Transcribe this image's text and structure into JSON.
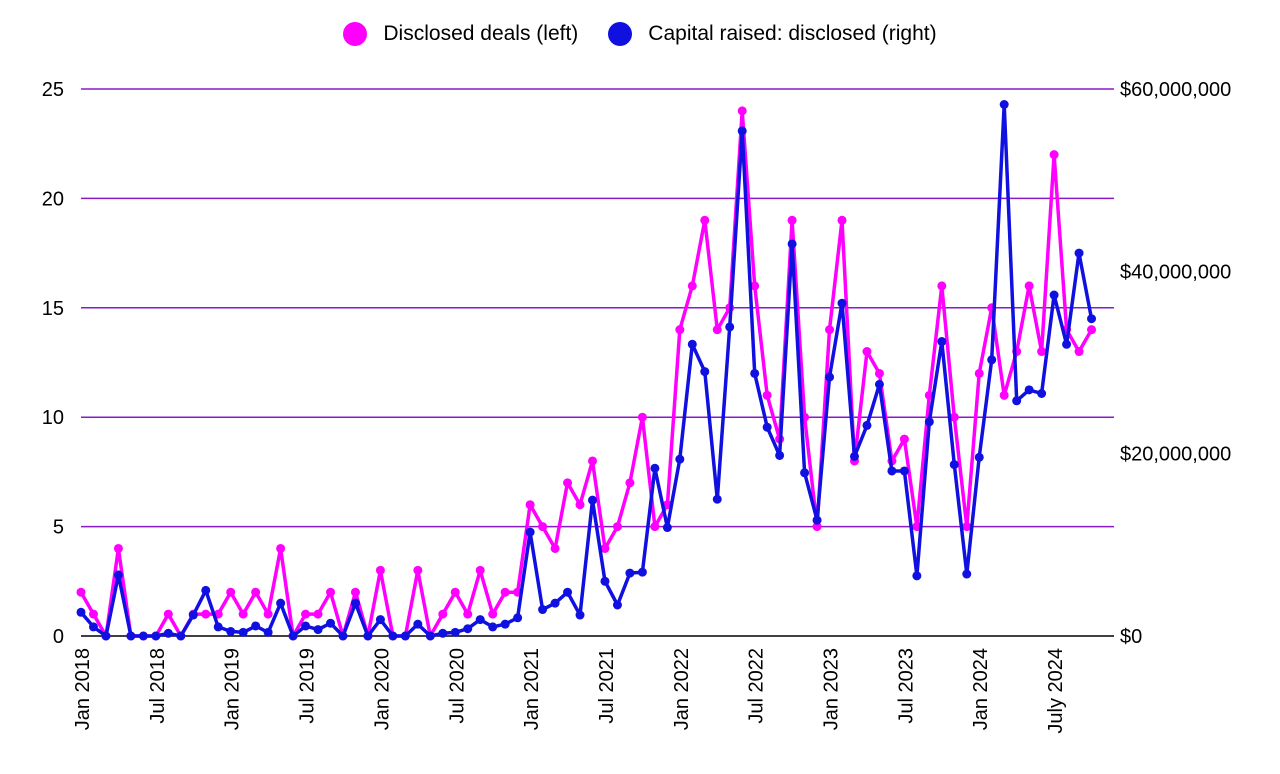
{
  "legend": {
    "deals_label": "Disclosed deals (left)",
    "capital_label": "Capital raised: disclosed (right)"
  },
  "colors": {
    "deals": "#ff00ff",
    "capital": "#1010e0",
    "grid": "#8a1ac8"
  },
  "chart_data": {
    "type": "line",
    "title": "",
    "xlabel": "",
    "ylabel_left": "",
    "ylabel_right": "",
    "grid": true,
    "legend_position": "top-center",
    "x": [
      "2018-01",
      "2018-02",
      "2018-03",
      "2018-04",
      "2018-05",
      "2018-06",
      "2018-07",
      "2018-08",
      "2018-09",
      "2018-10",
      "2018-11",
      "2018-12",
      "2019-01",
      "2019-02",
      "2019-03",
      "2019-04",
      "2019-05",
      "2019-06",
      "2019-07",
      "2019-08",
      "2019-09",
      "2019-10",
      "2019-11",
      "2019-12",
      "2020-01",
      "2020-02",
      "2020-03",
      "2020-04",
      "2020-05",
      "2020-06",
      "2020-07",
      "2020-08",
      "2020-09",
      "2020-10",
      "2020-11",
      "2020-12",
      "2021-01",
      "2021-02",
      "2021-03",
      "2021-04",
      "2021-05",
      "2021-06",
      "2021-07",
      "2021-08",
      "2021-09",
      "2021-10",
      "2021-11",
      "2021-12",
      "2022-01",
      "2022-02",
      "2022-03",
      "2022-04",
      "2022-05",
      "2022-06",
      "2022-07",
      "2022-08",
      "2022-09",
      "2022-10",
      "2022-11",
      "2022-12",
      "2023-01",
      "2023-02",
      "2023-03",
      "2023-04",
      "2023-05",
      "2023-06",
      "2023-07",
      "2023-08",
      "2023-09",
      "2023-10",
      "2023-11",
      "2023-12",
      "2024-01",
      "2024-02",
      "2024-03",
      "2024-04",
      "2024-05",
      "2024-06",
      "2024-07",
      "2024-08",
      "2024-09",
      "2024-10"
    ],
    "x_tick_labels": [
      "Jan 2018",
      "Jul 2018",
      "Jan 2019",
      "Jul 2019",
      "Jan 2020",
      "Jul 2020",
      "Jan 2021",
      "Jul 2021",
      "Jan 2022",
      "Jul 2022",
      "Jan 2023",
      "Jul 2023",
      "Jan 2024",
      "July 2024"
    ],
    "left_axis": {
      "ylim": [
        0,
        25
      ],
      "ticks": [
        "0",
        "5",
        "10",
        "15",
        "20",
        "25"
      ]
    },
    "right_axis": {
      "ylim": [
        0,
        60000000
      ],
      "ticks": [
        "$0",
        "$20,000,000",
        "$40,000,000",
        "$60,000,000"
      ]
    },
    "series": [
      {
        "name": "Disclosed deals (left)",
        "axis": "left",
        "values": [
          2,
          1,
          0,
          4,
          0,
          0,
          0,
          1,
          0,
          1,
          1,
          1,
          2,
          1,
          2,
          1,
          4,
          0,
          1,
          1,
          2,
          0,
          2,
          0,
          3,
          0,
          0,
          3,
          0,
          1,
          2,
          1,
          3,
          1,
          2,
          2,
          6,
          5,
          4,
          7,
          6,
          8,
          4,
          5,
          7,
          10,
          5,
          6,
          14,
          16,
          19,
          14,
          15,
          24,
          16,
          11,
          9,
          19,
          10,
          5,
          14,
          19,
          8,
          13,
          12,
          8,
          9,
          5,
          11,
          16,
          10,
          5,
          12,
          15,
          11,
          13,
          16,
          13,
          22,
          14,
          13,
          14
        ]
      },
      {
        "name": "Capital raised: disclosed (right)",
        "axis": "right",
        "values": [
          2600000,
          1000000,
          0,
          6700000,
          0,
          0,
          0,
          300000,
          0,
          2300000,
          5000000,
          1000000,
          500000,
          400000,
          1100000,
          400000,
          3600000,
          0,
          1100000,
          700000,
          1400000,
          0,
          3600000,
          0,
          1800000,
          0,
          0,
          1300000,
          0,
          300000,
          400000,
          800000,
          1800000,
          1000000,
          1300000,
          2000000,
          11400000,
          2900000,
          3600000,
          4800000,
          2300000,
          14900000,
          6000000,
          3400000,
          6900000,
          7000000,
          18400000,
          11900000,
          19400000,
          32000000,
          29000000,
          15000000,
          33900000,
          55400000,
          28800000,
          22900000,
          19800000,
          43000000,
          17900000,
          12700000,
          28400000,
          36500000,
          19700000,
          23100000,
          27600000,
          18100000,
          18100000,
          6600000,
          23500000,
          32300000,
          18800000,
          6800000,
          19600000,
          30300000,
          58300000,
          25800000,
          27000000,
          26600000,
          37400000,
          32000000,
          42000000,
          34800000
        ]
      }
    ]
  }
}
